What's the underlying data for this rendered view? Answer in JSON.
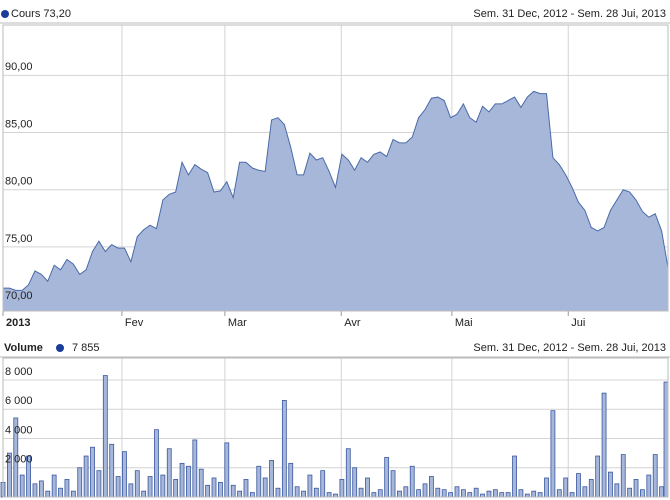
{
  "chart_data": [
    {
      "type": "area",
      "subtitle": "Sem. 31 Dec, 2012 - Sem. 28 Jui, 2013",
      "series": [
        {
          "name": "Cours",
          "color": "#4a6aa8",
          "fill": "#a7b7da",
          "marker_color": "#1a3d9a",
          "value_label": "73,20",
          "values": [
            71.4,
            71.4,
            71.2,
            71.2,
            71.7,
            72.9,
            72.6,
            72.0,
            73.4,
            73.0,
            73.9,
            73.5,
            72.6,
            73.0,
            74.6,
            75.5,
            74.6,
            75.2,
            74.9,
            74.9,
            73.7,
            75.9,
            76.5,
            76.9,
            76.6,
            79.1,
            79.6,
            79.8,
            82.4,
            81.3,
            82.2,
            81.8,
            81.5,
            79.8,
            79.9,
            80.7,
            79.3,
            82.4,
            82.4,
            81.9,
            81.7,
            81.6,
            86.1,
            86.3,
            85.7,
            83.7,
            81.3,
            81.3,
            83.2,
            82.6,
            82.8,
            81.6,
            80.2,
            83.1,
            82.6,
            81.7,
            82.8,
            82.4,
            83.1,
            83.3,
            82.9,
            84.4,
            84.1,
            84.1,
            84.6,
            86.3,
            87.0,
            88.0,
            88.1,
            87.8,
            86.3,
            86.6,
            87.5,
            86.3,
            85.9,
            87.3,
            86.8,
            87.5,
            87.5,
            87.8,
            88.1,
            87.2,
            88.1,
            88.6,
            88.4,
            88.4,
            82.8,
            82.2,
            81.3,
            80.2,
            78.9,
            78.2,
            76.7,
            76.4,
            76.7,
            78.2,
            79.1,
            80.0,
            79.8,
            79.1,
            78.1,
            77.6,
            77.9,
            76.4,
            73.2
          ]
        }
      ],
      "xlim": [
        0,
        104
      ],
      "xticks": [
        {
          "value": 0,
          "label": "2013"
        },
        {
          "value": 18.6,
          "label": "Fev"
        },
        {
          "value": 34.7,
          "label": "Mar"
        },
        {
          "value": 52.9,
          "label": "Avr"
        },
        {
          "value": 70.2,
          "label": "Mai"
        },
        {
          "value": 88.4,
          "label": "Jui"
        }
      ],
      "ylim": [
        69.4,
        94.4
      ],
      "yticks": [
        {
          "value": 70,
          "label": "70,00"
        },
        {
          "value": 75,
          "label": "75,00"
        },
        {
          "value": 80,
          "label": "80,00"
        },
        {
          "value": 85,
          "label": "85,00"
        },
        {
          "value": 90,
          "label": "90,00"
        }
      ],
      "grid": true
    },
    {
      "type": "bar",
      "subtitle": "Sem. 31 Dec, 2012 - Sem. 28 Jui, 2013",
      "series": [
        {
          "name": "Volume",
          "color": "#3a58a0",
          "fill": "#a7b7da",
          "marker_color": "#1a3d9a",
          "value_label": "7 855",
          "values": [
            1000,
            3000,
            5400,
            1500,
            2800,
            900,
            1100,
            400,
            1500,
            600,
            1200,
            400,
            2000,
            2800,
            3400,
            1800,
            8300,
            3600,
            1400,
            3100,
            900,
            1800,
            400,
            1400,
            4600,
            1500,
            3300,
            1200,
            2300,
            2100,
            3900,
            1900,
            800,
            1300,
            1000,
            3700,
            800,
            400,
            1200,
            300,
            2100,
            1300,
            2500,
            600,
            6600,
            2300,
            700,
            400,
            1500,
            600,
            1800,
            300,
            200,
            1200,
            3300,
            2000,
            600,
            1300,
            300,
            500,
            2700,
            1800,
            400,
            700,
            2100,
            500,
            900,
            1400,
            600,
            500,
            300,
            700,
            500,
            300,
            600,
            200,
            400,
            500,
            300,
            300,
            2800,
            500,
            200,
            400,
            300,
            1300,
            5900,
            500,
            1300,
            300,
            1600,
            700,
            1200,
            2800,
            7100,
            1700,
            900,
            2900,
            600,
            1200,
            500,
            1500,
            2900,
            700,
            7855
          ]
        }
      ],
      "xlim": [
        0,
        104
      ],
      "ylim": [
        0,
        9500
      ],
      "yticks": [
        {
          "value": 2000,
          "label": "2 000"
        },
        {
          "value": 4000,
          "label": "4 000"
        },
        {
          "value": 6000,
          "label": "6 000"
        },
        {
          "value": 8000,
          "label": "8 000"
        }
      ],
      "grid": true
    }
  ]
}
